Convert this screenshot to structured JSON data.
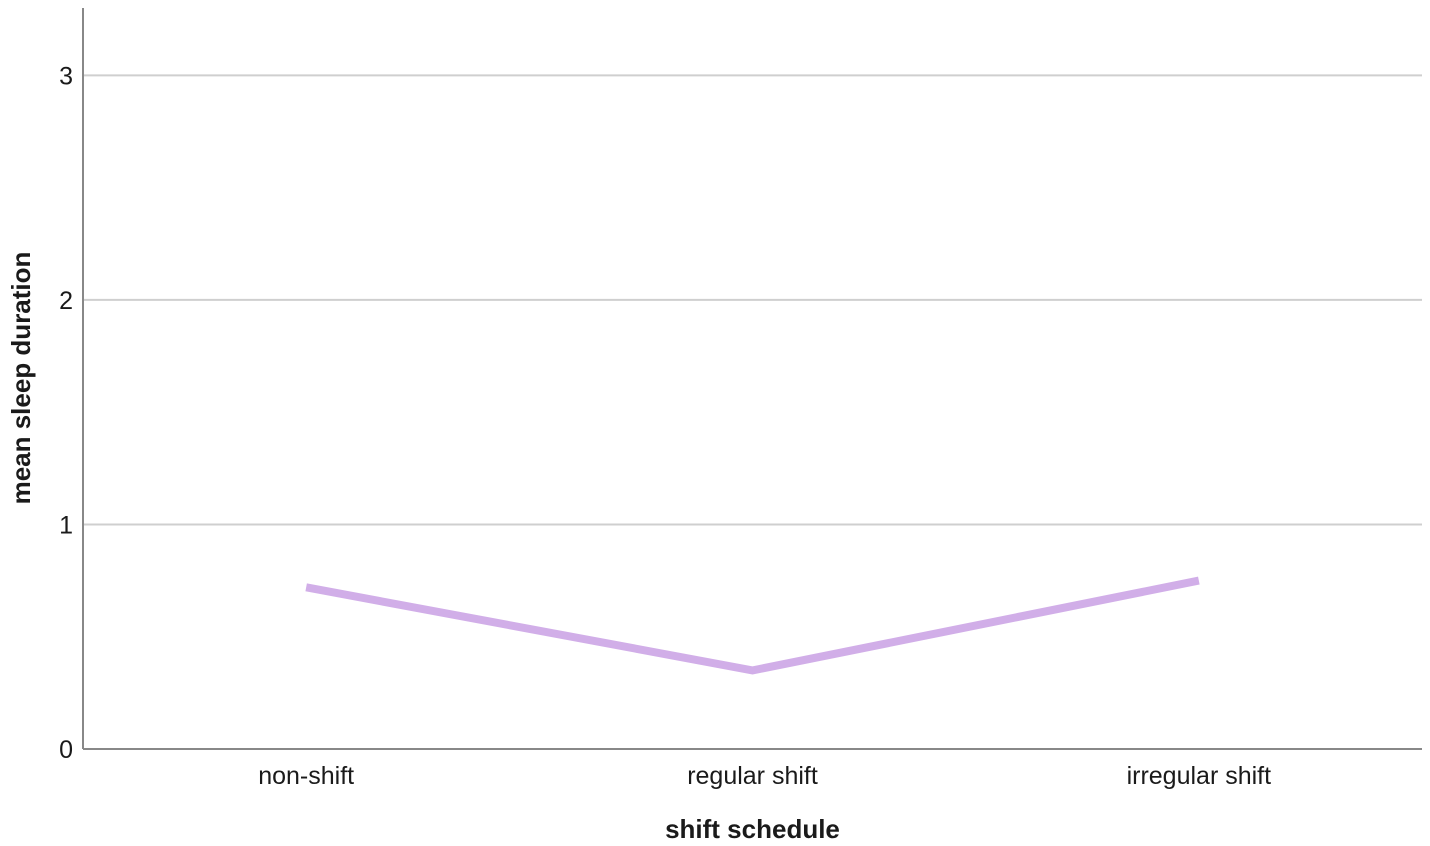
{
  "chart_data": {
    "type": "line",
    "title": "",
    "xlabel": "shift schedule",
    "ylabel": "mean sleep duration",
    "categories": [
      "non-shift",
      "regular shift",
      "irregular shift"
    ],
    "series": [
      {
        "values": [
          0.72,
          0.35,
          0.75
        ],
        "color": "#d1aee8"
      }
    ],
    "ylim": [
      0,
      3.3
    ],
    "yticks": [
      0,
      1,
      2,
      3
    ],
    "grid": "horizontal",
    "colors": {
      "grid": "#cfcfcf",
      "axis": "#888888"
    }
  }
}
